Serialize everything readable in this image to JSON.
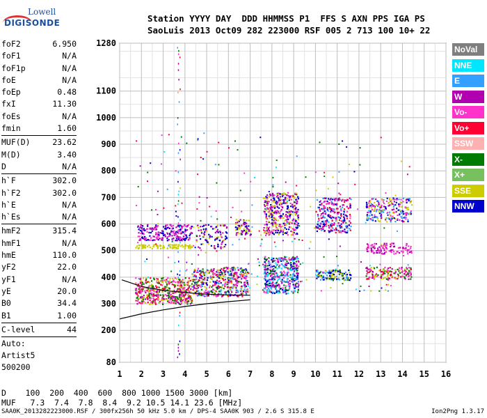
{
  "logo": {
    "line1": "Lowell",
    "line2": "DIGISONDE"
  },
  "header": {
    "labels": "Station YYYY DAY  DDD HHMMSS P1  FFS S AXN PPS IGA PS",
    "values": "SaoLuis 2013 Oct09 282 223000 RSF 005 2 713 100 10+ 22"
  },
  "params": {
    "group1": [
      [
        "foF2",
        "6.950"
      ],
      [
        "foF1",
        "N/A"
      ],
      [
        "foF1p",
        "N/A"
      ],
      [
        "foE",
        "N/A"
      ],
      [
        "foEp",
        "0.48"
      ],
      [
        "fxI",
        "11.30"
      ],
      [
        "foEs",
        "N/A"
      ],
      [
        "fmin",
        "1.60"
      ]
    ],
    "group2": [
      [
        "MUF(D)",
        "23.62"
      ],
      [
        "M(D)",
        "3.40"
      ],
      [
        "D",
        "N/A"
      ]
    ],
    "group3": [
      [
        "h`F",
        "302.0"
      ],
      [
        "h`F2",
        "302.0"
      ],
      [
        "h`E",
        "N/A"
      ],
      [
        "h`Es",
        "N/A"
      ]
    ],
    "group4": [
      [
        "hmF2",
        "315.4"
      ],
      [
        "hmF1",
        "N/A"
      ],
      [
        "hmE",
        "110.0"
      ],
      [
        "yF2",
        "22.0"
      ],
      [
        "yF1",
        "N/A"
      ],
      [
        "yE",
        "20.0"
      ],
      [
        "B0",
        "34.4"
      ],
      [
        "B1",
        "1.00"
      ]
    ],
    "group5": [
      [
        "C-level",
        "44"
      ]
    ],
    "auto": [
      "Auto:",
      "Artist5",
      "500200"
    ]
  },
  "legend": [
    {
      "label": "NoVal",
      "color": "#7f7f7f"
    },
    {
      "label": "NNE",
      "color": "#00e6ff"
    },
    {
      "label": "E",
      "color": "#33a0ff"
    },
    {
      "label": "W",
      "color": "#b000b0"
    },
    {
      "label": "Vo-",
      "color": "#ff33cc"
    },
    {
      "label": "Vo+",
      "color": "#ff0033"
    },
    {
      "label": "SSW",
      "color": "#ffb0b0"
    },
    {
      "label": "X-",
      "color": "#007a00"
    },
    {
      "label": "X+",
      "color": "#77c060"
    },
    {
      "label": "SSE",
      "color": "#cccc00"
    },
    {
      "label": "NNW",
      "color": "#0000cc"
    }
  ],
  "footer": {
    "line1": "D    100  200  400  600  800 1000 1500 3000 [km]",
    "line2": "MUF   7.3  7.4  7.8  8.4  9.2 10.5 14.1 23.6 [MHz]",
    "bottom": "SAA0K_2013282223000.RSF / 300fx256h 50 kHz 5.0 km / DPS-4 SAA0K 903 / 2.6 S 315.8 E",
    "version": "Ion2Png 1.3.17"
  },
  "chart_data": {
    "type": "scatter",
    "xlim": [
      1,
      16
    ],
    "ylim": [
      80,
      1280
    ],
    "x_ticks": [
      1,
      2,
      3,
      4,
      5,
      6,
      7,
      8,
      9,
      10,
      11,
      12,
      13,
      14,
      15,
      16
    ],
    "y_ticks": [
      80,
      200,
      300,
      400,
      500,
      600,
      700,
      800,
      900,
      1000,
      1100,
      1280
    ],
    "grid": true,
    "xlabel": "",
    "ylabel": "",
    "clusters": [
      {
        "x": [
          1.7,
          4.3
        ],
        "y": [
          300,
          360
        ],
        "colors": [
          "#ff33cc",
          "#ff0033",
          "#b000b0",
          "#cccc00",
          "#007a00"
        ],
        "density": 0.8
      },
      {
        "x": [
          1.7,
          4.3
        ],
        "y": [
          360,
          400
        ],
        "colors": [
          "#ff33cc",
          "#ff0033",
          "#007a00",
          "#cccc00"
        ],
        "density": 0.6
      },
      {
        "x": [
          1.7,
          4.3
        ],
        "y": [
          510,
          525
        ],
        "colors": [
          "#cccc00"
        ],
        "density": 0.9
      },
      {
        "x": [
          1.8,
          4.3
        ],
        "y": [
          540,
          600
        ],
        "colors": [
          "#b000b0",
          "#0000cc",
          "#ff33cc"
        ],
        "density": 0.6
      },
      {
        "x": [
          4.3,
          6.9
        ],
        "y": [
          330,
          440
        ],
        "colors": [
          "#ff33cc",
          "#ff0033",
          "#007a00",
          "#0000cc",
          "#33a0ff",
          "#cccc00",
          "#b000b0"
        ],
        "density": 0.6
      },
      {
        "x": [
          4.5,
          5.9
        ],
        "y": [
          510,
          600
        ],
        "colors": [
          "#b000b0",
          "#cccc00",
          "#0000cc"
        ],
        "density": 0.3
      },
      {
        "x": [
          6.3,
          7.0
        ],
        "y": [
          560,
          620
        ],
        "colors": [
          "#b000b0",
          "#cccc00",
          "#0000cc"
        ],
        "density": 0.6
      },
      {
        "x": [
          7.6,
          9.2
        ],
        "y": [
          340,
          480
        ],
        "colors": [
          "#0000cc",
          "#33a0ff",
          "#00e6ff",
          "#ff33cc",
          "#007a00",
          "#b000b0"
        ],
        "density": 0.7
      },
      {
        "x": [
          7.6,
          9.2
        ],
        "y": [
          560,
          720
        ],
        "colors": [
          "#cccc00",
          "#b000b0",
          "#ff33cc",
          "#0000cc"
        ],
        "density": 0.6
      },
      {
        "x": [
          10.0,
          11.6
        ],
        "y": [
          390,
          430
        ],
        "colors": [
          "#007a00",
          "#0000cc",
          "#33a0ff",
          "#cccc00"
        ],
        "density": 0.7
      },
      {
        "x": [
          10.0,
          11.6
        ],
        "y": [
          570,
          700
        ],
        "colors": [
          "#ff33cc",
          "#b000b0",
          "#ff0033",
          "#0000cc",
          "#33a0ff"
        ],
        "density": 0.5
      },
      {
        "x": [
          12.3,
          14.4
        ],
        "y": [
          395,
          440
        ],
        "colors": [
          "#ff33cc",
          "#ff0033",
          "#007a00",
          "#b000b0",
          "#cccc00"
        ],
        "density": 0.6
      },
      {
        "x": [
          12.3,
          14.4
        ],
        "y": [
          490,
          530
        ],
        "colors": [
          "#ff33cc",
          "#b000b0"
        ],
        "density": 0.5
      },
      {
        "x": [
          12.3,
          14.4
        ],
        "y": [
          610,
          700
        ],
        "colors": [
          "#0000cc",
          "#b000b0",
          "#ff33cc",
          "#33a0ff",
          "#cccc00"
        ],
        "density": 0.45
      }
    ],
    "trace_lower": [
      [
        1,
        243
      ],
      [
        2,
        262
      ],
      [
        3,
        277
      ],
      [
        4,
        290
      ],
      [
        5,
        300
      ],
      [
        6,
        308
      ],
      [
        7,
        315
      ]
    ],
    "trace_upper": [
      [
        1.1,
        390
      ],
      [
        2,
        365
      ],
      [
        3,
        350
      ],
      [
        4,
        342
      ],
      [
        5,
        336
      ],
      [
        6,
        333
      ],
      [
        7,
        332
      ]
    ],
    "vertical_marker_x": 3.7
  }
}
